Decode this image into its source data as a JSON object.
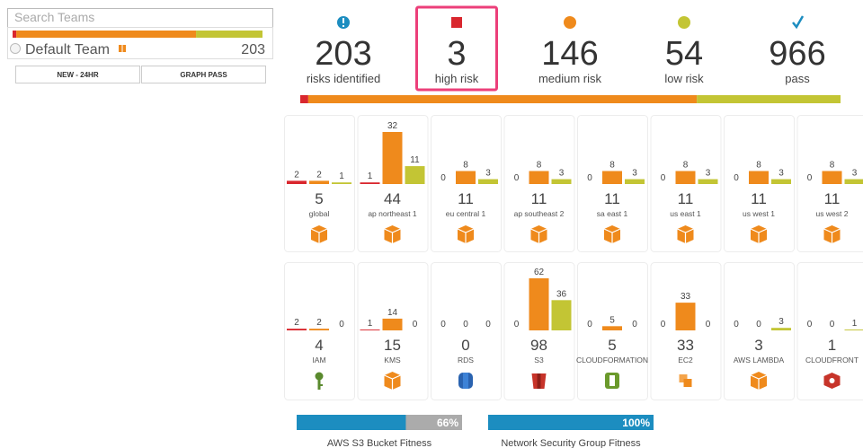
{
  "sidebar": {
    "search_placeholder": "Search Teams",
    "team": {
      "name": "Default Team",
      "count": 203
    },
    "buttons": [
      "NEW - 24HR",
      "GRAPH PASS"
    ]
  },
  "summary": {
    "stats": [
      {
        "value": 203,
        "label": "risks identified"
      },
      {
        "value": 3,
        "label": "high risk"
      },
      {
        "value": 146,
        "label": "medium risk"
      },
      {
        "value": 54,
        "label": "low risk"
      },
      {
        "value": 966,
        "label": "pass"
      }
    ]
  },
  "regions": [
    {
      "name": "global",
      "total": 5,
      "values": [
        2,
        2,
        1
      ]
    },
    {
      "name": "ap northeast 1",
      "total": 44,
      "values": [
        1,
        32,
        11
      ]
    },
    {
      "name": "eu central 1",
      "total": 11,
      "values": [
        0,
        8,
        3
      ]
    },
    {
      "name": "ap southeast 2",
      "total": 11,
      "values": [
        0,
        8,
        3
      ]
    },
    {
      "name": "sa east 1",
      "total": 11,
      "values": [
        0,
        8,
        3
      ]
    },
    {
      "name": "us east 1",
      "total": 11,
      "values": [
        0,
        8,
        3
      ]
    },
    {
      "name": "us west 1",
      "total": 11,
      "values": [
        0,
        8,
        3
      ]
    },
    {
      "name": "us west 2",
      "total": 11,
      "values": [
        0,
        8,
        3
      ]
    }
  ],
  "services": [
    {
      "name": "IAM",
      "total": 4,
      "values": [
        2,
        2,
        0
      ]
    },
    {
      "name": "KMS",
      "total": 15,
      "values": [
        1,
        14,
        0
      ]
    },
    {
      "name": "RDS",
      "total": 0,
      "values": [
        0,
        0,
        0
      ]
    },
    {
      "name": "S3",
      "total": 98,
      "values": [
        0,
        62,
        36
      ]
    },
    {
      "name": "CLOUDFORMATION",
      "total": 5,
      "values": [
        0,
        5,
        0
      ]
    },
    {
      "name": "EC2",
      "total": 33,
      "values": [
        0,
        33,
        0
      ]
    },
    {
      "name": "AWS LAMBDA",
      "total": 3,
      "values": [
        0,
        0,
        3
      ]
    },
    {
      "name": "CLOUDFRONT",
      "total": 1,
      "values": [
        0,
        0,
        1
      ]
    }
  ],
  "fitness": [
    {
      "name": "AWS S3 Bucket Fitness",
      "value": 66,
      "value_label": "66%"
    },
    {
      "name": "Network Security Group Fitness",
      "value": 100,
      "value_label": "100%"
    }
  ]
}
